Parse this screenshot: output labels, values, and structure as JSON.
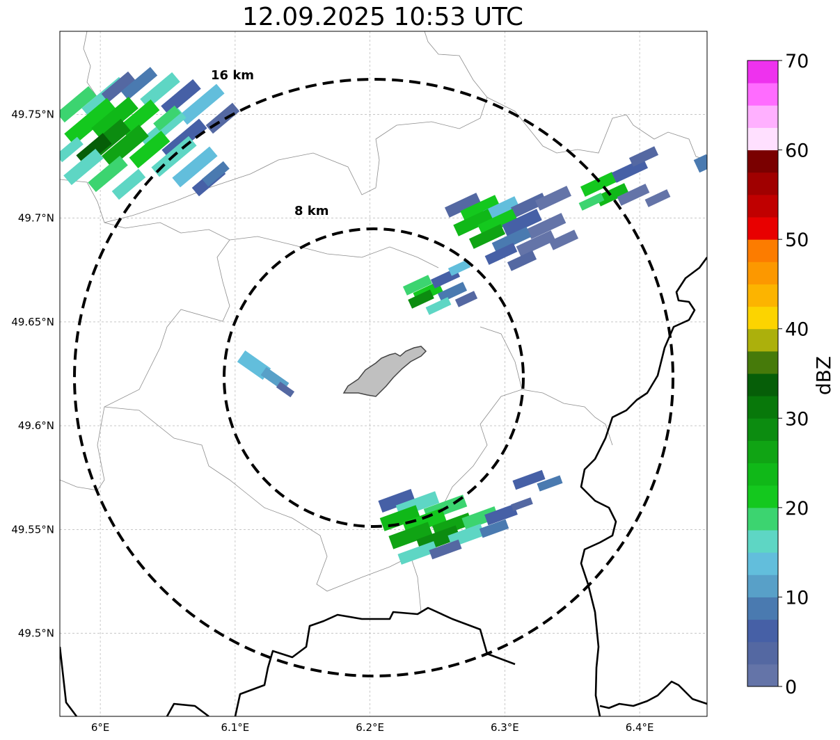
{
  "title": "12.09.2025 10:53 UTC",
  "axes": {
    "lon_ticks": [
      {
        "value": 6.0,
        "label": "6°E"
      },
      {
        "value": 6.1,
        "label": "6.1°E"
      },
      {
        "value": 6.2,
        "label": "6.2°E"
      },
      {
        "value": 6.3,
        "label": "6.3°E"
      },
      {
        "value": 6.4,
        "label": "6.4°E"
      }
    ],
    "lat_ticks": [
      {
        "value": 49.75,
        "label": "49.75°N"
      },
      {
        "value": 49.7,
        "label": "49.7°N"
      },
      {
        "value": 49.65,
        "label": "49.65°N"
      },
      {
        "value": 49.6,
        "label": "49.6°N"
      },
      {
        "value": 49.55,
        "label": "49.55°N"
      },
      {
        "value": 49.5,
        "label": "49.5°N"
      }
    ],
    "lon_range": [
      5.97,
      6.45
    ],
    "lat_range": [
      49.46,
      49.79
    ],
    "grid": true
  },
  "range_rings": [
    {
      "label": "8 km",
      "radius_km": 8
    },
    {
      "label": "16 km",
      "radius_km": 16
    }
  ],
  "radar_center": {
    "lon": 6.205,
    "lat": 49.623
  },
  "colorbar": {
    "label": "dBZ",
    "ticks": [
      "0",
      "10",
      "20",
      "30",
      "40",
      "50",
      "60",
      "70"
    ],
    "range": [
      0,
      70
    ],
    "colors": [
      "#6474a8",
      "#5468a2",
      "#4660a6",
      "#4a7ab0",
      "#58a0c8",
      "#62bedc",
      "#5ed6c4",
      "#3cd470",
      "#14c81e",
      "#10b818",
      "#10a414",
      "#0c8c10",
      "#08780a",
      "#065e08",
      "#467a0a",
      "#acb00c",
      "#fcd400",
      "#fcb400",
      "#fc9800",
      "#fc7c00",
      "#e80000",
      "#c00000",
      "#a00000",
      "#7a0000",
      "#ffe0ff",
      "#ffb0ff",
      "#ff6cff",
      "#ee32ee"
    ]
  },
  "colors": {
    "rings": "#000000",
    "borders": "#000000",
    "admin": "#8c8c8c",
    "city": "#c0c0c0"
  }
}
